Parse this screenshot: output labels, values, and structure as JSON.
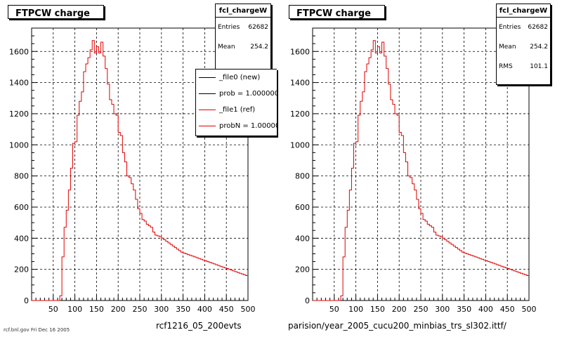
{
  "chart_data": [
    {
      "type": "bar",
      "title": "FTPCW charge",
      "xlabel": "rcf1216_05_200evts",
      "xlim": [
        0,
        500
      ],
      "ylim": [
        0,
        1750
      ],
      "x_ticks": [
        50,
        100,
        150,
        200,
        250,
        300,
        350,
        400,
        450,
        500
      ],
      "y_ticks": [
        0,
        200,
        400,
        600,
        800,
        1000,
        1200,
        1400,
        1600
      ],
      "grid": true,
      "stats": {
        "title": "fcl_chargeW",
        "rows": [
          {
            "label": "Entries",
            "value": "62682"
          },
          {
            "label": "Mean",
            "value": "254.2"
          }
        ]
      },
      "legend": {
        "placement": "top-right",
        "entries": [
          {
            "label": "_file0 (new)",
            "color": "#000000"
          },
          {
            "label": "prob = 1.000000",
            "color": "#000000"
          },
          {
            "label": "_file1 (ref)",
            "color": "#e00000"
          },
          {
            "label": "probN = 1.000000",
            "color": "#e00000"
          }
        ]
      },
      "series": [
        {
          "name": "_file1 (ref)",
          "color": "#e00000",
          "bin_width": 5,
          "x": [
            0,
            5,
            10,
            15,
            20,
            25,
            30,
            35,
            40,
            45,
            50,
            55,
            60,
            65,
            70,
            75,
            80,
            85,
            90,
            95,
            100,
            105,
            110,
            115,
            120,
            125,
            130,
            135,
            140,
            145,
            150,
            155,
            160,
            165,
            170,
            175,
            180,
            185,
            190,
            195,
            200,
            205,
            210,
            215,
            220,
            225,
            230,
            235,
            240,
            245,
            250,
            255,
            260,
            265,
            270,
            275,
            280,
            285,
            290,
            295,
            300,
            305,
            310,
            315,
            320,
            325,
            330,
            335,
            340,
            345,
            350,
            355,
            360,
            365,
            370,
            375,
            380,
            385,
            390,
            395,
            400,
            405,
            410,
            415,
            420,
            425,
            430,
            435,
            440,
            445,
            450,
            455,
            460,
            465,
            470,
            475,
            480,
            485,
            490,
            495
          ],
          "values": [
            0,
            0,
            0,
            0,
            0,
            0,
            0,
            0,
            0,
            0,
            0,
            0,
            0,
            30,
            280,
            470,
            580,
            710,
            850,
            1010,
            1020,
            1190,
            1280,
            1340,
            1470,
            1520,
            1560,
            1610,
            1670,
            1590,
            1630,
            1590,
            1660,
            1570,
            1490,
            1390,
            1290,
            1260,
            1200,
            1190,
            1080,
            1060,
            950,
            890,
            800,
            790,
            750,
            710,
            650,
            590,
            560,
            520,
            510,
            490,
            480,
            470,
            440,
            420,
            415,
            410,
            400,
            390,
            380,
            370,
            360,
            350,
            340,
            330,
            320,
            310,
            305,
            300,
            295,
            290,
            285,
            280,
            275,
            270,
            265,
            260,
            255,
            250,
            245,
            240,
            235,
            230,
            225,
            220,
            215,
            210,
            205,
            200,
            195,
            190,
            185,
            180,
            175,
            170,
            165,
            160
          ]
        }
      ]
    },
    {
      "type": "bar",
      "title": "FTPCW charge",
      "xlabel": "parision/year_2005_cucu200_minbias_trs_sl302.ittf/",
      "xlim": [
        0,
        500
      ],
      "ylim": [
        0,
        1750
      ],
      "x_ticks": [
        50,
        100,
        150,
        200,
        250,
        300,
        350,
        400,
        450,
        500
      ],
      "y_ticks": [
        0,
        200,
        400,
        600,
        800,
        1000,
        1200,
        1400,
        1600
      ],
      "grid": true,
      "stats": {
        "title": "fcl_chargeW",
        "rows": [
          {
            "label": "Entries",
            "value": "62682"
          },
          {
            "label": "Mean",
            "value": "254.2"
          },
          {
            "label": "RMS",
            "value": "101.1"
          }
        ]
      },
      "series": [
        {
          "name": "",
          "color": "#e00000",
          "bin_width": 5,
          "x": [
            0,
            5,
            10,
            15,
            20,
            25,
            30,
            35,
            40,
            45,
            50,
            55,
            60,
            65,
            70,
            75,
            80,
            85,
            90,
            95,
            100,
            105,
            110,
            115,
            120,
            125,
            130,
            135,
            140,
            145,
            150,
            155,
            160,
            165,
            170,
            175,
            180,
            185,
            190,
            195,
            200,
            205,
            210,
            215,
            220,
            225,
            230,
            235,
            240,
            245,
            250,
            255,
            260,
            265,
            270,
            275,
            280,
            285,
            290,
            295,
            300,
            305,
            310,
            315,
            320,
            325,
            330,
            335,
            340,
            345,
            350,
            355,
            360,
            365,
            370,
            375,
            380,
            385,
            390,
            395,
            400,
            405,
            410,
            415,
            420,
            425,
            430,
            435,
            440,
            445,
            450,
            455,
            460,
            465,
            470,
            475,
            480,
            485,
            490,
            495
          ],
          "values": [
            0,
            0,
            0,
            0,
            0,
            0,
            0,
            0,
            0,
            0,
            0,
            0,
            0,
            30,
            280,
            470,
            580,
            710,
            850,
            1010,
            1020,
            1190,
            1280,
            1340,
            1470,
            1520,
            1560,
            1610,
            1670,
            1590,
            1630,
            1590,
            1660,
            1570,
            1490,
            1390,
            1290,
            1260,
            1200,
            1190,
            1080,
            1060,
            950,
            890,
            800,
            790,
            750,
            710,
            650,
            590,
            560,
            520,
            510,
            490,
            480,
            470,
            440,
            420,
            415,
            410,
            400,
            390,
            380,
            370,
            360,
            350,
            340,
            330,
            320,
            310,
            305,
            300,
            295,
            290,
            285,
            280,
            275,
            270,
            265,
            260,
            255,
            250,
            245,
            240,
            235,
            230,
            225,
            220,
            215,
            210,
            205,
            200,
            195,
            190,
            185,
            180,
            175,
            170,
            165,
            160
          ]
        }
      ]
    }
  ],
  "footer_text": "rcf.bnl.gov   Fri Dec 16 2005"
}
